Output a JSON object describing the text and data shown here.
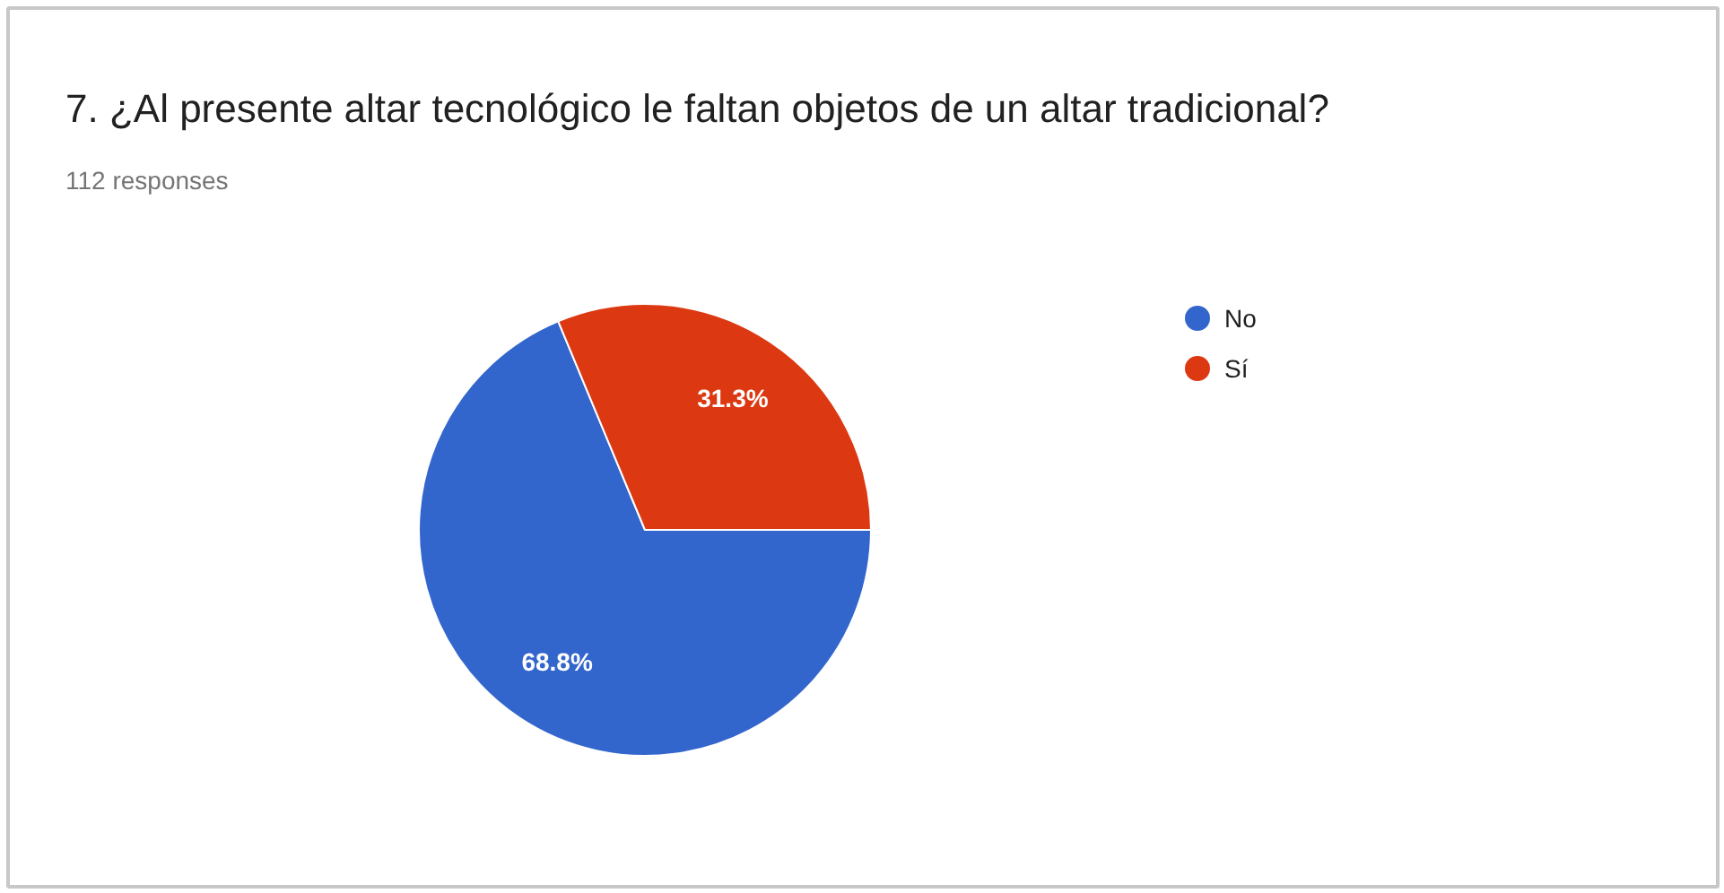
{
  "chart_data": {
    "type": "pie",
    "title": "7. ¿Al presente altar tecnológico le faltan objetos de un altar tradicional?",
    "subtitle": "112 responses",
    "categories": [
      "No",
      "Sí"
    ],
    "values": [
      68.8,
      31.3
    ],
    "colors": [
      "#3366cc",
      "#dc3912"
    ],
    "value_labels": [
      "68.8%",
      "31.3%"
    ],
    "legend": "right"
  }
}
